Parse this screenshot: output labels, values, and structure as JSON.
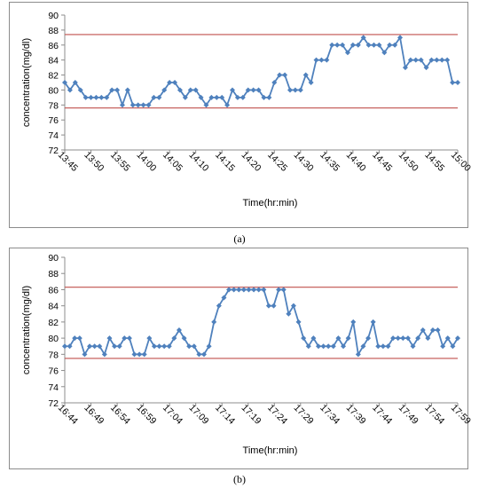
{
  "chart_data": [
    {
      "type": "line",
      "panel_label": "(a)",
      "xlabel": "Time(hr:min)",
      "ylabel": "concentration(mg/dl)",
      "ylim": [
        72,
        90
      ],
      "yticks": [
        72,
        74,
        76,
        78,
        80,
        82,
        84,
        86,
        88,
        90
      ],
      "xtick_labels": [
        "13:45",
        "13:50",
        "13:55",
        "14:00",
        "14:05",
        "14:10",
        "14:15",
        "14:20",
        "14:25",
        "14:30",
        "14:35",
        "14:40",
        "14:45",
        "14:50",
        "14:55",
        "15:00"
      ],
      "point_count": 76,
      "reference_lines": [
        87.4,
        77.6
      ],
      "series": [
        {
          "color": "#4f81bd",
          "values": [
            81,
            80,
            81,
            80,
            79,
            79,
            79,
            79,
            79,
            80,
            80,
            78,
            80,
            78,
            78,
            78,
            78,
            79,
            79,
            80,
            81,
            81,
            80,
            79,
            80,
            80,
            79,
            78,
            79,
            79,
            79,
            78,
            80,
            79,
            79,
            80,
            80,
            80,
            79,
            79,
            81,
            82,
            82,
            80,
            80,
            80,
            82,
            81,
            84,
            84,
            84,
            86,
            86,
            86,
            85,
            86,
            86,
            87,
            86,
            86,
            86,
            85,
            86,
            86,
            87,
            83,
            84,
            84,
            84,
            83,
            84,
            84,
            84,
            84,
            81,
            81
          ]
        }
      ]
    },
    {
      "type": "line",
      "panel_label": "(b)",
      "xlabel": "Time(hr:min)",
      "ylabel": "concentration(mg/dl)",
      "ylim": [
        72,
        90
      ],
      "yticks": [
        72,
        74,
        76,
        78,
        80,
        82,
        84,
        86,
        88,
        90
      ],
      "xtick_labels": [
        "16:44",
        "16:49",
        "16:54",
        "16:59",
        "17:04",
        "17:09",
        "17:14",
        "17:19",
        "17:24",
        "17:29",
        "17:34",
        "17:39",
        "17:44",
        "17:49",
        "17:54",
        "17:59"
      ],
      "point_count": 80,
      "reference_lines": [
        86.3,
        77.5
      ],
      "series": [
        {
          "color": "#4f81bd",
          "values": [
            79,
            79,
            80,
            80,
            78,
            79,
            79,
            79,
            78,
            80,
            79,
            79,
            80,
            80,
            78,
            78,
            78,
            80,
            79,
            79,
            79,
            79,
            80,
            81,
            80,
            79,
            79,
            78,
            78,
            79,
            82,
            84,
            85,
            86,
            86,
            86,
            86,
            86,
            86,
            86,
            86,
            84,
            84,
            86,
            86,
            83,
            84,
            82,
            80,
            79,
            80,
            79,
            79,
            79,
            79,
            80,
            79,
            80,
            82,
            78,
            79,
            80,
            82,
            79,
            79,
            79,
            80,
            80,
            80,
            80,
            79,
            80,
            81,
            80,
            81,
            81,
            79,
            80,
            79,
            80
          ]
        }
      ]
    }
  ],
  "colors": {
    "series": "#4f81bd",
    "reference": "#c0504d",
    "grid": "#d9d9d9"
  }
}
